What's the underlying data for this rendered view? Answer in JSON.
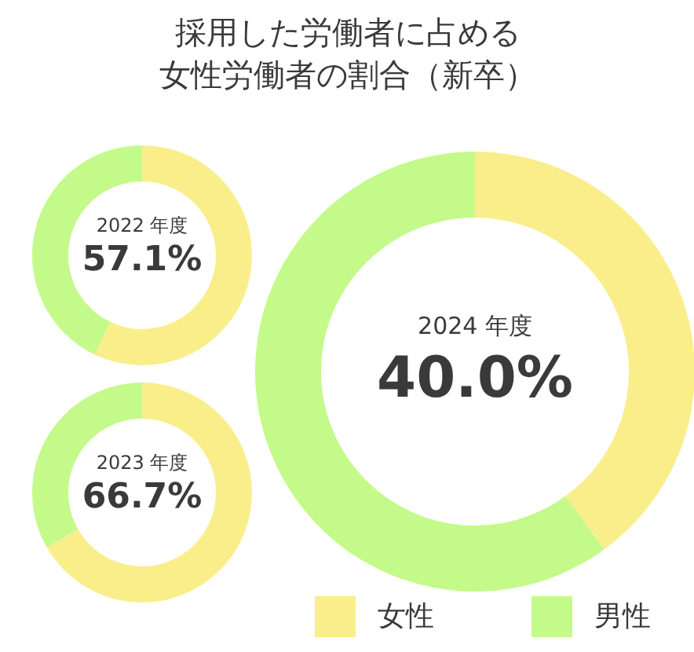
{
  "chart_data": [
    {
      "type": "donut",
      "title": "採用した労働者に占める女性労働者の割合（新卒）",
      "subtitle": "2022 年度",
      "categories": [
        "女性",
        "男性"
      ],
      "values": [
        57.1,
        42.9
      ],
      "colors": [
        "#f9ee8a",
        "#c4fa8a"
      ],
      "annotations": [
        "57.1%"
      ],
      "legend": "bottom right"
    },
    {
      "type": "donut",
      "subtitle": "2024 年度",
      "values": [
        40.0,
        60.0
      ],
      "colors": [
        "#f9ee8a",
        "#c4fa8a"
      ],
      "annotations": [
        "40.0%"
      ]
    },
    {
      "type": "donut",
      "subtitle": "2023 年度",
      "values": [
        66.7,
        33.3
      ],
      "colors": [
        "#f9ee8a",
        "#c4fa8a"
      ],
      "annotations": [
        "66.7%"
      ]
    }
  ]
}
